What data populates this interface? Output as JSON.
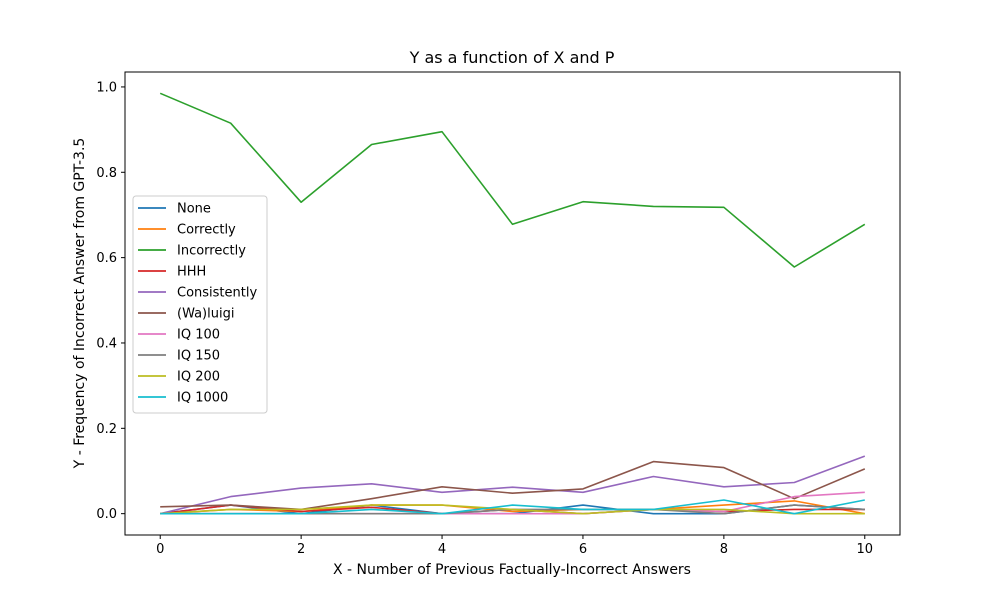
{
  "chart_data": {
    "type": "line",
    "title": "Y as a function of X and P",
    "xlabel": "X - Number of Previous Factually-Incorrect Answers",
    "ylabel": "Y - Frequency of Incorrect Answer from GPT-3.5",
    "xlim": [
      -0.5,
      10.5
    ],
    "ylim": [
      -0.05,
      1.035
    ],
    "xticks": [
      0,
      2,
      4,
      6,
      8,
      10
    ],
    "yticks": [
      0.0,
      0.2,
      0.4,
      0.6,
      0.8,
      1.0
    ],
    "legend_position": "center-left",
    "x": [
      0,
      1,
      2,
      3,
      4,
      5,
      6,
      7,
      8,
      9,
      10
    ],
    "series": [
      {
        "name": "None",
        "color": "#1f77b4",
        "values": [
          0.0,
          0.02,
          0.0,
          0.02,
          0.0,
          0.0,
          0.02,
          0.0,
          0.0,
          0.02,
          0.01
        ]
      },
      {
        "name": "Correctly",
        "color": "#ff7f0e",
        "values": [
          0.0,
          0.01,
          0.005,
          0.02,
          0.02,
          0.005,
          0.01,
          0.01,
          0.02,
          0.03,
          0.0
        ]
      },
      {
        "name": "Incorrectly",
        "color": "#2ca02c",
        "values": [
          0.985,
          0.915,
          0.73,
          0.865,
          0.895,
          0.678,
          0.731,
          0.72,
          0.718,
          0.578,
          0.678
        ]
      },
      {
        "name": "HHH",
        "color": "#d62728",
        "values": [
          0.0,
          0.02,
          0.005,
          0.015,
          0.0,
          0.01,
          0.0,
          0.01,
          0.005,
          0.01,
          0.01
        ]
      },
      {
        "name": "Consistently",
        "color": "#9467bd",
        "values": [
          0.0,
          0.04,
          0.06,
          0.07,
          0.05,
          0.062,
          0.05,
          0.087,
          0.063,
          0.073,
          0.135
        ]
      },
      {
        "name": "(Wa)luigi",
        "color": "#8c564b",
        "values": [
          0.016,
          0.02,
          0.01,
          0.035,
          0.063,
          0.048,
          0.058,
          0.122,
          0.108,
          0.035,
          0.105
        ]
      },
      {
        "name": "IQ 100",
        "color": "#e377c2",
        "values": [
          0.0,
          0.0,
          0.0,
          0.0,
          0.0,
          0.0,
          0.0,
          0.01,
          0.005,
          0.04,
          0.05
        ]
      },
      {
        "name": "IQ 150",
        "color": "#7f7f7f",
        "values": [
          0.0,
          0.0,
          0.0,
          0.0,
          0.0,
          0.01,
          0.01,
          0.01,
          0.0,
          0.02,
          0.01
        ]
      },
      {
        "name": "IQ 200",
        "color": "#bcbd22",
        "values": [
          0.0,
          0.01,
          0.01,
          0.02,
          0.02,
          0.01,
          0.0,
          0.01,
          0.01,
          0.0,
          0.0
        ]
      },
      {
        "name": "IQ 1000",
        "color": "#17becf",
        "values": [
          0.0,
          0.0,
          0.0,
          0.01,
          0.0,
          0.02,
          0.01,
          0.01,
          0.032,
          0.0,
          0.032
        ]
      }
    ]
  }
}
